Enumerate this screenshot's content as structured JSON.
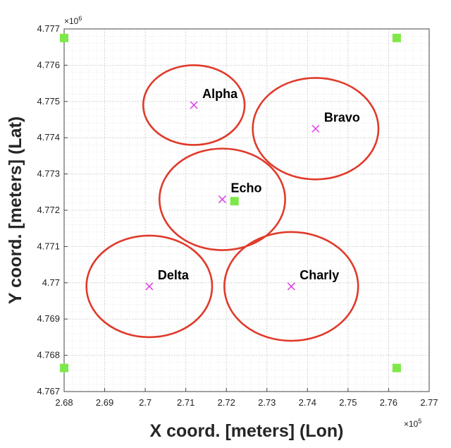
{
  "chart_data": {
    "type": "scatter",
    "title": "",
    "xlabel": "X coord. [meters] (Lon)",
    "ylabel": "Y coord. [meters] (Lat)",
    "xlim": [
      268000,
      277000
    ],
    "ylim": [
      4767000,
      4777000
    ],
    "x_exponent_label": "×10",
    "x_exponent_power": "5",
    "y_exponent_label": "×10",
    "y_exponent_power": "6",
    "x_ticks": [
      268000,
      269000,
      270000,
      271000,
      272000,
      273000,
      274000,
      275000,
      276000,
      277000
    ],
    "x_tick_labels": [
      "2.68",
      "2.69",
      "2.7",
      "2.71",
      "2.72",
      "2.73",
      "2.74",
      "2.75",
      "2.76",
      "2.77"
    ],
    "y_ticks": [
      4767000,
      4768000,
      4769000,
      4770000,
      4771000,
      4772000,
      4773000,
      4774000,
      4775000,
      4776000,
      4777000
    ],
    "y_tick_labels": [
      "4.767",
      "4.768",
      "4.769",
      "4.77",
      "4.771",
      "4.772",
      "4.773",
      "4.774",
      "4.775",
      "4.776",
      "4.777"
    ],
    "grid": true,
    "minor_grid": true,
    "colors": {
      "circle": "#e03a2a",
      "cross": "#e040e8",
      "square": "#7ee84a",
      "grid": "#dcdcdc",
      "axis": "#444444"
    },
    "clusters": [
      {
        "name": "Alpha",
        "x": 271200,
        "y": 4774900,
        "rx": 1250,
        "ry": 1100
      },
      {
        "name": "Bravo",
        "x": 274200,
        "y": 4774250,
        "rx": 1550,
        "ry": 1400
      },
      {
        "name": "Echo",
        "x": 271900,
        "y": 4772300,
        "rx": 1550,
        "ry": 1400
      },
      {
        "name": "Delta",
        "x": 270100,
        "y": 4769900,
        "rx": 1550,
        "ry": 1400
      },
      {
        "name": "Charly",
        "x": 273600,
        "y": 4769900,
        "rx": 1650,
        "ry": 1500
      }
    ],
    "anchors": [
      {
        "x": 268000,
        "y": 4776750
      },
      {
        "x": 276200,
        "y": 4776750
      },
      {
        "x": 268000,
        "y": 4767650
      },
      {
        "x": 276200,
        "y": 4767650
      },
      {
        "x": 272200,
        "y": 4772250
      }
    ]
  }
}
